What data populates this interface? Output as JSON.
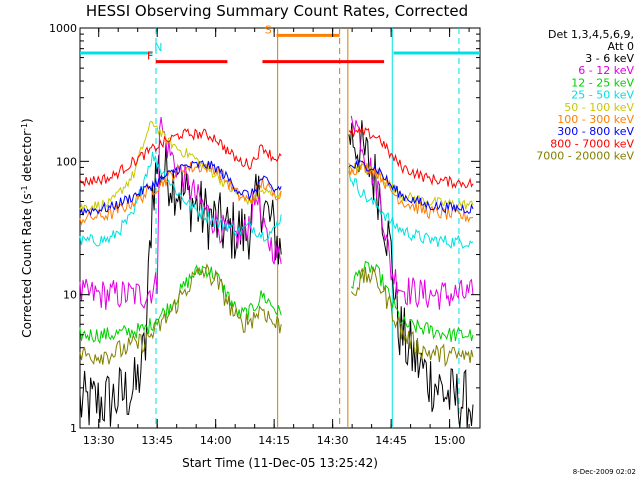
{
  "chart_data": {
    "type": "line",
    "title": "HESSI Observing Summary Count Rates, Corrected",
    "xlabel": "Start Time (11-Dec-05 13:25:42)",
    "ylabel_parts": {
      "main": "Corrected Count Rate (s",
      "sup": "-1",
      "mid": " detector",
      "sup2": "-1",
      "end": ")"
    },
    "y_scale": "log",
    "ylim": [
      1,
      1000
    ],
    "y_ticks": [
      "1",
      "10",
      "100",
      "1000"
    ],
    "xlim": [
      13.42,
      15.13
    ],
    "x_ticks": [
      {
        "label": "13:30",
        "hour": 13.5
      },
      {
        "label": "13:45",
        "hour": 13.75
      },
      {
        "label": "14:00",
        "hour": 14.0
      },
      {
        "label": "14:15",
        "hour": 14.25
      },
      {
        "label": "14:30",
        "hour": 14.5
      },
      {
        "label": "14:45",
        "hour": 14.75
      },
      {
        "label": "15:00",
        "hour": 15.0
      }
    ],
    "legend_header": [
      "Det 1,3,4,5,6,9,",
      "Att 0"
    ],
    "legend_placement": "right",
    "series": [
      {
        "name": "3 - 6 keV",
        "color": "#000000",
        "segments": [
          [
            [
              13.42,
              1.5
            ],
            [
              13.55,
              1.6
            ],
            [
              13.66,
              2
            ],
            [
              13.7,
              4
            ],
            [
              13.73,
              60
            ],
            [
              13.75,
              90
            ],
            [
              13.8,
              80
            ],
            [
              13.85,
              60
            ],
            [
              13.9,
              50
            ],
            [
              13.95,
              40
            ],
            [
              14.0,
              35
            ],
            [
              14.05,
              30
            ],
            [
              14.1,
              30
            ],
            [
              14.13,
              28
            ],
            [
              14.16,
              40
            ],
            [
              14.19,
              55
            ],
            [
              14.22,
              40
            ],
            [
              14.25,
              30
            ],
            [
              14.28,
              20
            ]
          ],
          [
            [
              14.57,
              170
            ],
            [
              14.6,
              140
            ],
            [
              14.65,
              100
            ],
            [
              14.7,
              60
            ],
            [
              14.75,
              20
            ],
            [
              14.78,
              6
            ],
            [
              14.82,
              4
            ],
            [
              14.9,
              2.5
            ],
            [
              15.0,
              1.7
            ],
            [
              15.1,
              1.5
            ]
          ]
        ]
      },
      {
        "name": "6 - 12 keV",
        "color": "#e000e0",
        "segments": [
          [
            [
              13.42,
              10
            ],
            [
              13.55,
              10
            ],
            [
              13.7,
              10
            ],
            [
              13.75,
              12
            ],
            [
              13.76,
              200
            ],
            [
              13.8,
              120
            ],
            [
              13.85,
              80
            ],
            [
              13.9,
              60
            ],
            [
              13.95,
              45
            ],
            [
              14.0,
              35
            ],
            [
              14.05,
              28
            ],
            [
              14.1,
              27
            ],
            [
              14.13,
              30
            ],
            [
              14.16,
              45
            ],
            [
              14.18,
              60
            ],
            [
              14.2,
              30
            ],
            [
              14.25,
              22
            ],
            [
              14.28,
              17
            ]
          ],
          [
            [
              14.58,
              250
            ],
            [
              14.62,
              150
            ],
            [
              14.65,
              100
            ],
            [
              14.7,
              60
            ],
            [
              14.75,
              15
            ],
            [
              14.8,
              11
            ],
            [
              14.9,
              10
            ],
            [
              15.0,
              10
            ],
            [
              15.1,
              10
            ]
          ]
        ]
      },
      {
        "name": "12 - 25 keV",
        "color": "#00d000",
        "segments": [
          [
            [
              13.42,
              5
            ],
            [
              13.55,
              5
            ],
            [
              13.7,
              5.5
            ],
            [
              13.8,
              8
            ],
            [
              13.9,
              14
            ],
            [
              13.95,
              16
            ],
            [
              14.0,
              14
            ],
            [
              14.05,
              10
            ],
            [
              14.1,
              7
            ],
            [
              14.15,
              7.5
            ],
            [
              14.2,
              10
            ],
            [
              14.25,
              8
            ],
            [
              14.28,
              7
            ]
          ],
          [
            [
              14.58,
              12
            ],
            [
              14.62,
              15
            ],
            [
              14.66,
              16
            ],
            [
              14.7,
              14
            ],
            [
              14.75,
              9
            ],
            [
              14.8,
              6
            ],
            [
              14.9,
              5.5
            ],
            [
              15.0,
              5
            ],
            [
              15.1,
              5
            ]
          ]
        ]
      },
      {
        "name": "25 - 50 keV",
        "color": "#00e0e0",
        "segments": [
          [
            [
              13.42,
              25
            ],
            [
              13.55,
              26
            ],
            [
              13.65,
              40
            ],
            [
              13.7,
              80
            ],
            [
              13.73,
              110
            ],
            [
              13.78,
              80
            ],
            [
              13.85,
              55
            ],
            [
              13.9,
              45
            ],
            [
              13.95,
              40
            ],
            [
              14.0,
              35
            ],
            [
              14.05,
              33
            ],
            [
              14.1,
              30
            ],
            [
              14.15,
              33
            ],
            [
              14.2,
              28
            ],
            [
              14.25,
              30
            ],
            [
              14.28,
              40
            ]
          ],
          [
            [
              14.57,
              80
            ],
            [
              14.62,
              60
            ],
            [
              14.66,
              50
            ],
            [
              14.7,
              45
            ],
            [
              14.75,
              35
            ],
            [
              14.8,
              30
            ],
            [
              14.9,
              26
            ],
            [
              15.0,
              25
            ],
            [
              15.1,
              25
            ]
          ]
        ]
      },
      {
        "name": "50 - 100 keV",
        "color": "#c8c800",
        "segments": [
          [
            [
              13.42,
              45
            ],
            [
              13.55,
              48
            ],
            [
              13.65,
              80
            ],
            [
              13.7,
              150
            ],
            [
              13.73,
              200
            ],
            [
              13.78,
              150
            ],
            [
              13.85,
              120
            ],
            [
              13.9,
              110
            ],
            [
              13.95,
              90
            ],
            [
              14.0,
              80
            ],
            [
              14.05,
              65
            ],
            [
              14.1,
              55
            ],
            [
              14.15,
              50
            ],
            [
              14.2,
              60
            ],
            [
              14.25,
              55
            ],
            [
              14.28,
              60
            ]
          ],
          [
            [
              14.57,
              90
            ],
            [
              14.62,
              90
            ],
            [
              14.66,
              85
            ],
            [
              14.7,
              80
            ],
            [
              14.75,
              65
            ],
            [
              14.8,
              55
            ],
            [
              14.9,
              50
            ],
            [
              15.0,
              48
            ],
            [
              15.1,
              47
            ]
          ]
        ]
      },
      {
        "name": "100 - 300 keV",
        "color": "#ff7f00",
        "segments": [
          [
            [
              13.42,
              37
            ],
            [
              13.55,
              40
            ],
            [
              13.65,
              50
            ],
            [
              13.75,
              65
            ],
            [
              13.85,
              88
            ],
            [
              13.95,
              92
            ],
            [
              14.0,
              88
            ],
            [
              14.05,
              70
            ],
            [
              14.1,
              55
            ],
            [
              14.15,
              50
            ],
            [
              14.2,
              70
            ],
            [
              14.25,
              55
            ],
            [
              14.28,
              60
            ]
          ],
          [
            [
              14.57,
              85
            ],
            [
              14.62,
              92
            ],
            [
              14.66,
              90
            ],
            [
              14.7,
              80
            ],
            [
              14.75,
              60
            ],
            [
              14.8,
              50
            ],
            [
              14.9,
              42
            ],
            [
              15.0,
              40
            ],
            [
              15.1,
              38
            ]
          ]
        ]
      },
      {
        "name": "300 - 800 keV",
        "color": "#0000ff",
        "segments": [
          [
            [
              13.42,
              42
            ],
            [
              13.55,
              45
            ],
            [
              13.65,
              55
            ],
            [
              13.75,
              70
            ],
            [
              13.85,
              90
            ],
            [
              13.95,
              95
            ],
            [
              14.0,
              90
            ],
            [
              14.05,
              75
            ],
            [
              14.1,
              60
            ],
            [
              14.15,
              55
            ],
            [
              14.2,
              75
            ],
            [
              14.25,
              60
            ],
            [
              14.28,
              65
            ]
          ],
          [
            [
              14.57,
              90
            ],
            [
              14.62,
              95
            ],
            [
              14.66,
              92
            ],
            [
              14.7,
              85
            ],
            [
              14.75,
              65
            ],
            [
              14.8,
              55
            ],
            [
              14.9,
              47
            ],
            [
              15.0,
              45
            ],
            [
              15.1,
              44
            ]
          ]
        ]
      },
      {
        "name": "800 - 7000 keV",
        "color": "#ff0000",
        "segments": [
          [
            [
              13.42,
              70
            ],
            [
              13.55,
              75
            ],
            [
              13.65,
              100
            ],
            [
              13.75,
              130
            ],
            [
              13.85,
              160
            ],
            [
              13.95,
              160
            ],
            [
              14.0,
              150
            ],
            [
              14.05,
              120
            ],
            [
              14.1,
              100
            ],
            [
              14.15,
              95
            ],
            [
              14.2,
              130
            ],
            [
              14.25,
              105
            ],
            [
              14.28,
              110
            ]
          ],
          [
            [
              14.57,
              160
            ],
            [
              14.62,
              165
            ],
            [
              14.66,
              160
            ],
            [
              14.7,
              150
            ],
            [
              14.75,
              110
            ],
            [
              14.8,
              90
            ],
            [
              14.9,
              75
            ],
            [
              15.0,
              70
            ],
            [
              15.1,
              68
            ]
          ]
        ]
      },
      {
        "name": "7000 - 20000 keV",
        "color": "#808000",
        "segments": [
          [
            [
              13.42,
              3.5
            ],
            [
              13.55,
              3.6
            ],
            [
              13.7,
              4.5
            ],
            [
              13.8,
              7
            ],
            [
              13.9,
              13
            ],
            [
              13.95,
              15
            ],
            [
              14.0,
              13
            ],
            [
              14.05,
              9
            ],
            [
              14.1,
              6
            ],
            [
              14.15,
              6.5
            ],
            [
              14.2,
              8
            ],
            [
              14.25,
              6
            ],
            [
              14.28,
              6
            ]
          ],
          [
            [
              14.58,
              10
            ],
            [
              14.62,
              13
            ],
            [
              14.66,
              14
            ],
            [
              14.7,
              12
            ],
            [
              14.75,
              8
            ],
            [
              14.8,
              5
            ],
            [
              14.9,
              3.7
            ],
            [
              15.0,
              3.5
            ],
            [
              15.1,
              3.4
            ]
          ]
        ]
      }
    ],
    "vertical_markers": [
      {
        "hour": 13.745,
        "color": "#00e0e0",
        "style": "dashed"
      },
      {
        "hour": 14.265,
        "color": "#d08000",
        "style": "solid"
      },
      {
        "hour": 14.53,
        "color": "#d08000",
        "style": "dashed"
      },
      {
        "hour": 14.565,
        "color": "#d08000",
        "style": "solid"
      },
      {
        "hour": 14.755,
        "color": "#00e0e0",
        "style": "solid"
      },
      {
        "hour": 15.04,
        "color": "#00e0e0",
        "style": "dashed"
      }
    ],
    "flag_bars": [
      {
        "label": "N",
        "color": "#00e0e0",
        "level": 650,
        "ranges": [
          [
            13.42,
            13.73
          ],
          [
            14.76,
            15.13
          ]
        ],
        "label_hour": 13.755
      },
      {
        "label": "F",
        "color": "#ff0000",
        "level": 560,
        "ranges": [
          [
            13.745,
            14.05
          ],
          [
            14.2,
            14.72
          ]
        ],
        "label_hour": 13.72
      },
      {
        "label": "S",
        "color": "#ff7f00",
        "level": 880,
        "ranges": [
          [
            14.26,
            14.53
          ]
        ],
        "label_hour": 14.225
      }
    ],
    "timestamp": "8-Dec-2009 02:02"
  }
}
